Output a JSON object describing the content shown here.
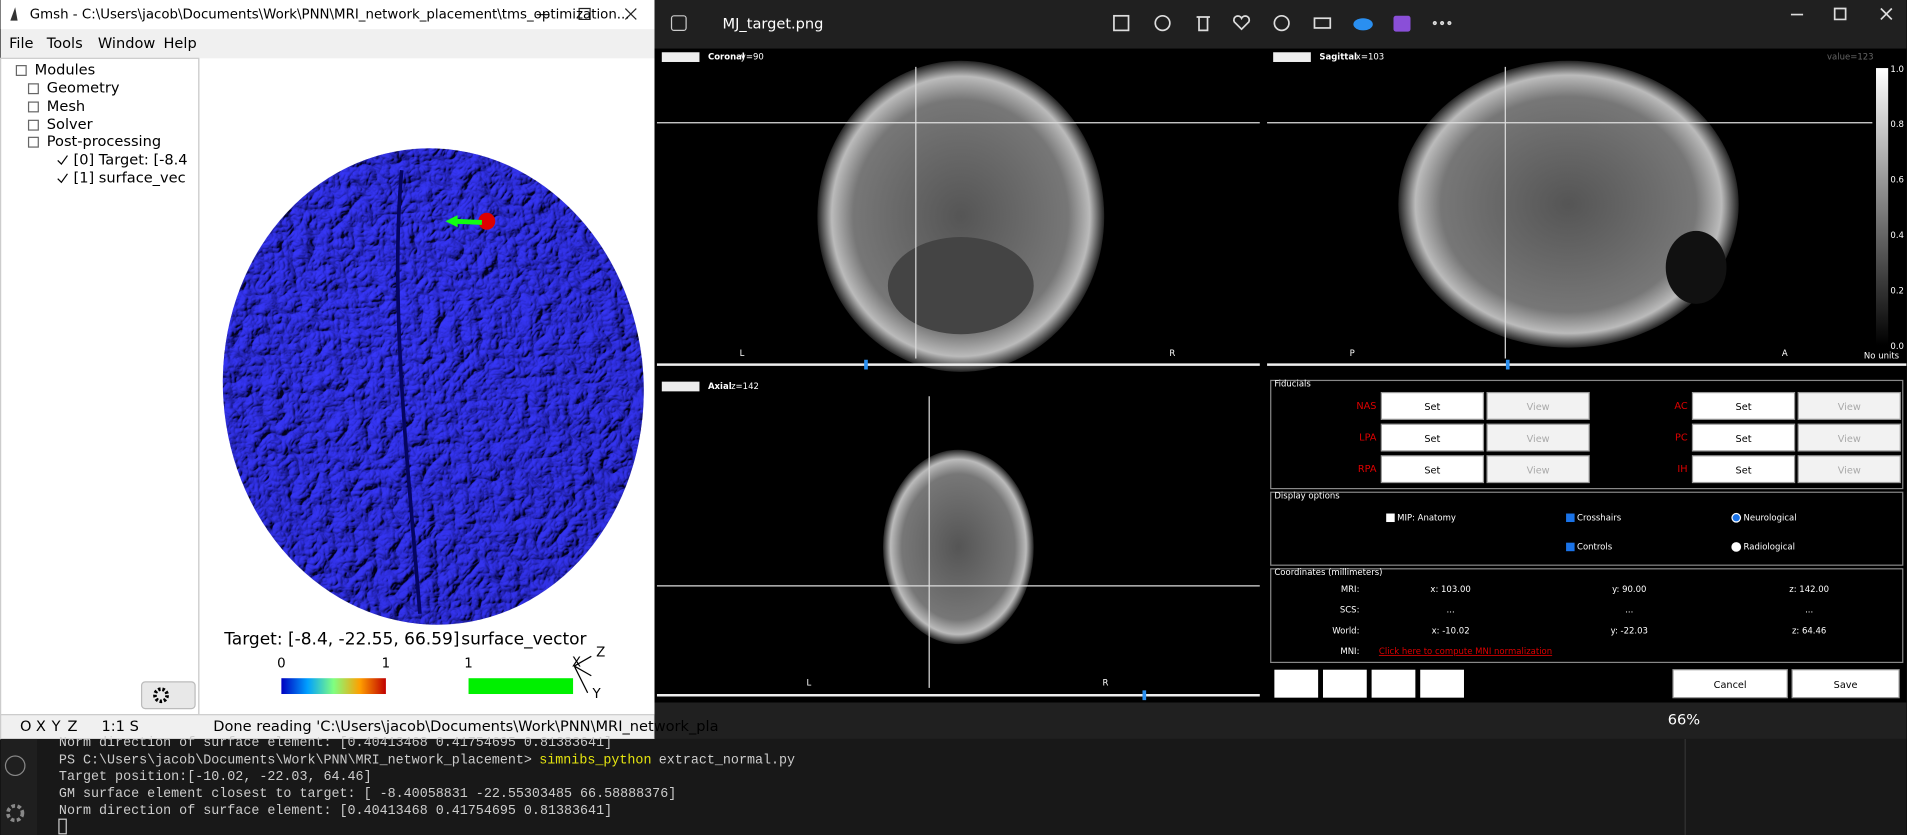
{
  "gmsh": {
    "title": "Gmsh - C:\\Users\\jacob\\Documents\\Work\\PNN\\MRI_network_placement\\tms_optimization...",
    "menu": [
      "File",
      "Tools",
      "Window",
      "Help"
    ],
    "tree": [
      "Modules",
      "Geometry",
      "Mesh",
      "Solver",
      "Post-processing",
      "[0] Target: [-8.4",
      "[1] surface_vec"
    ],
    "views": [
      {
        "label": "Target: [-8.4, -22.55, 66.59]",
        "min": "0",
        "max": "1"
      },
      {
        "label": "surface_vector",
        "min": "1"
      }
    ],
    "axes": [
      "Z",
      "X",
      "Y"
    ],
    "statusbar": {
      "buttons": [
        "O",
        "X",
        "Y",
        "Z"
      ],
      "ratio": "1:1 S",
      "message": "Done reading 'C:\\Users\\jacob\\Documents\\Work\\PNN\\MRI_network_pla"
    }
  },
  "viewer": {
    "title": "MJ_target.png",
    "zoom": "66%",
    "panels": [
      {
        "name": "Coronal",
        "slice": "y=90",
        "left": "L",
        "right": "R"
      },
      {
        "name": "Sagittal",
        "slice": "x=103",
        "left": "P",
        "right": "A"
      },
      {
        "name": "Axial",
        "slice": "z=142",
        "left": "L",
        "right": "R"
      }
    ],
    "value": "value=123",
    "colorbar": {
      "ticks": [
        "1.0",
        "0.8",
        "0.6",
        "0.4",
        "0.2",
        "0.0"
      ],
      "units": "No units"
    },
    "fiducials": {
      "title": "Fiducials",
      "names": [
        "NAS",
        "LPA",
        "RPA",
        "AC",
        "PC",
        "IH"
      ],
      "set": "Set",
      "view": "View"
    },
    "display_options": {
      "title": "Display options",
      "options": [
        "MIP: Anatomy",
        "Crosshairs",
        "Neurological",
        "Controls",
        "Radiological"
      ]
    },
    "coordinates": {
      "title": "Coordinates (millimeters)",
      "rows": [
        {
          "label": "MRI:",
          "x": "x: 103.00",
          "y": "y: 90.00",
          "z": "z: 142.00"
        },
        {
          "label": "SCS:",
          "x": "...",
          "y": "...",
          "z": "..."
        },
        {
          "label": "World:",
          "x": "x: -10.02",
          "y": "y: -22.03",
          "z": "z: 64.46"
        }
      ],
      "mni": {
        "label": "MNI:",
        "link": "Click here to compute MNI normalization"
      }
    },
    "buttons": [
      "Cancel",
      "Save"
    ]
  },
  "terminal": {
    "first": "Norm direction of surface element: [0.40413468 0.41754695 0.81383641]",
    "prompt": "PS C:\\Users\\jacob\\Documents\\Work\\PNN\\MRI_network_placement>",
    "command": "simnibs_python",
    "args": "extract_normal.py",
    "lines": [
      "Target position:[-10.02, -22.03, 64.46]",
      "GM surface element closest to target: [ -8.40058831 -22.55303485  66.58888376]",
      "Norm direction of surface element: [0.40413468 0.41754695 0.81383641]"
    ]
  }
}
